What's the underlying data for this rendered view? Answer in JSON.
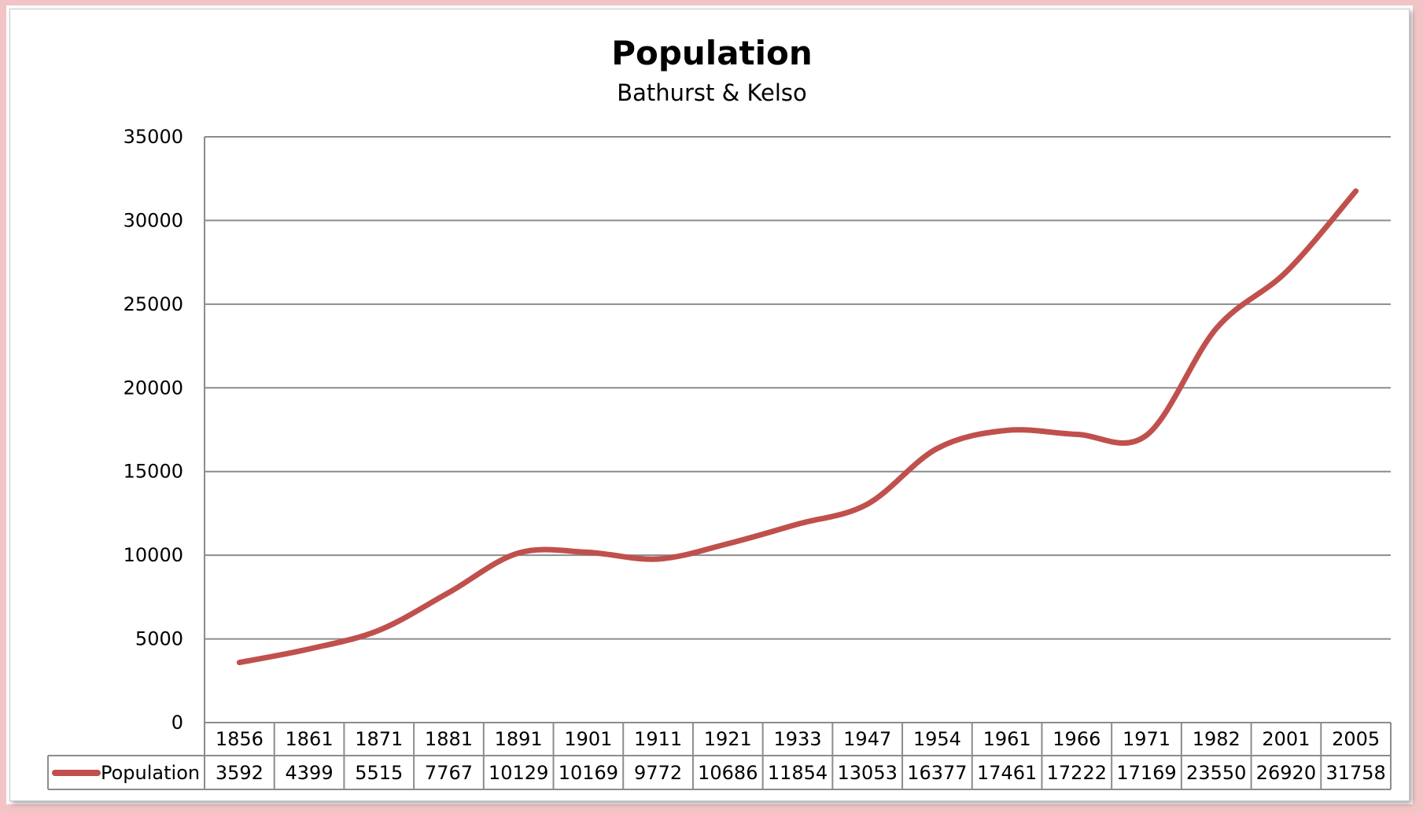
{
  "chart_data": {
    "type": "line",
    "title": "Population",
    "subtitle": "Bathurst & Kelso",
    "categories": [
      "1856",
      "1861",
      "1871",
      "1881",
      "1891",
      "1901",
      "1911",
      "1921",
      "1933",
      "1947",
      "1954",
      "1961",
      "1966",
      "1971",
      "1982",
      "2001",
      "2005"
    ],
    "series": [
      {
        "name": "Population",
        "color": "#c0504d",
        "values": [
          3592,
          4399,
          5515,
          7767,
          10129,
          10169,
          9772,
          10686,
          11854,
          13053,
          16377,
          17461,
          17222,
          17169,
          23550,
          26920,
          31758
        ]
      }
    ],
    "ylim": [
      0,
      35000
    ],
    "yticks": [
      0,
      5000,
      10000,
      15000,
      20000,
      25000,
      30000,
      35000
    ],
    "grid": true,
    "data_table": true,
    "legend": "data table"
  }
}
